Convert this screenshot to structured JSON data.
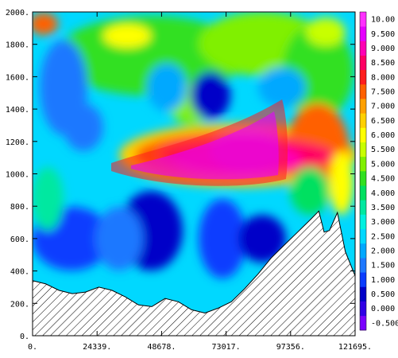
{
  "chart_data": {
    "type": "heatmap",
    "title": "",
    "xlabel": "",
    "ylabel": "",
    "xlim": [
      0,
      121695
    ],
    "ylim": [
      0,
      2000
    ],
    "x_tick_labels": [
      "0.",
      "24339.",
      "48678.",
      "73017.",
      "97356.",
      "121695."
    ],
    "x_tick_values": [
      0,
      24339,
      48678,
      73017,
      97356,
      121695
    ],
    "y_tick_labels": [
      "0.",
      "200.",
      "400.",
      "600.",
      "800.",
      "1000.",
      "1200.",
      "1400.",
      "1600.",
      "1800.",
      "2000."
    ],
    "y_tick_values": [
      0,
      200,
      400,
      600,
      800,
      1000,
      1200,
      1400,
      1600,
      1800,
      2000
    ],
    "colorbar": {
      "labels": [
        "-0.500",
        "0.000",
        "0.500",
        "1.000",
        "1.500",
        "2.000",
        "2.500",
        "3.000",
        "3.500",
        "4.000",
        "4.500",
        "5.000",
        "5.500",
        "6.000",
        "6.500",
        "7.000",
        "7.500",
        "8.000",
        "8.500",
        "9.000",
        "9.500",
        "10.00"
      ],
      "colors": [
        "#7a00ff",
        "#3000e6",
        "#0000c8",
        "#0a3cff",
        "#1e78ff",
        "#00a8ff",
        "#00d8ff",
        "#00f0e0",
        "#00e8a0",
        "#00e060",
        "#30e020",
        "#80f000",
        "#c8ff00",
        "#ffff00",
        "#ffd000",
        "#ffa000",
        "#ff6000",
        "#ff1e1e",
        "#ff0064",
        "#ff00b4",
        "#e600ff",
        "#ff30ff"
      ]
    },
    "grid": false,
    "legend": "colorbar right",
    "bathymetry_depth_profile": {
      "x": [
        0,
        5000,
        10000,
        15000,
        20000,
        25000,
        30000,
        35000,
        40000,
        45000,
        50000,
        55000,
        60000,
        65000,
        70000,
        75000,
        80000,
        85000,
        90000,
        95000,
        100000,
        105000,
        108000,
        110000,
        112000,
        115000,
        118000,
        121695
      ],
      "y": [
        340,
        320,
        280,
        260,
        270,
        300,
        280,
        240,
        190,
        180,
        230,
        210,
        160,
        140,
        170,
        210,
        290,
        380,
        480,
        560,
        640,
        720,
        770,
        640,
        650,
        760,
        520,
        370
      ]
    }
  }
}
